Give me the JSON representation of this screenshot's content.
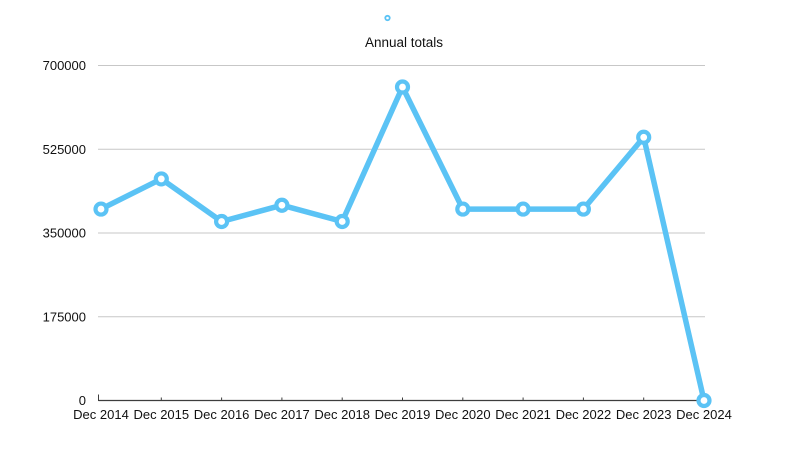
{
  "chart": {
    "title": "Annual totals",
    "legend": {
      "marker_icon": "circle-outline-marker",
      "position": "top-center"
    }
  },
  "chart_data": {
    "type": "line",
    "title": "Annual totals",
    "categories": [
      "Dec 2014",
      "Dec 2015",
      "Dec 2016",
      "Dec 2017",
      "Dec 2018",
      "Dec 2019",
      "Dec 2020",
      "Dec 2021",
      "Dec 2022",
      "Dec 2023",
      "Dec 2024"
    ],
    "series": [
      {
        "name": "Annual totals",
        "values": [
          400000,
          463000,
          374000,
          408000,
          374000,
          655000,
          400000,
          400000,
          400000,
          550000,
          0
        ]
      }
    ],
    "xlabel": "",
    "ylabel": "",
    "ylim": [
      0,
      700000
    ],
    "ytick_values": [
      0,
      175000,
      350000,
      525000,
      700000
    ],
    "ytick_labels": [
      "0",
      "175000",
      "350000",
      "525000",
      "700000"
    ],
    "grid": "horizontal",
    "legend_position": "top-center",
    "marker_style": "circle-with-white-center",
    "colors": {
      "line": "#5BC3F5",
      "marker_fill": "#ffffff",
      "gridline": "#c7c7c7",
      "axis": "#3d3d3d",
      "text": "#111111",
      "background": "#ffffff"
    }
  }
}
